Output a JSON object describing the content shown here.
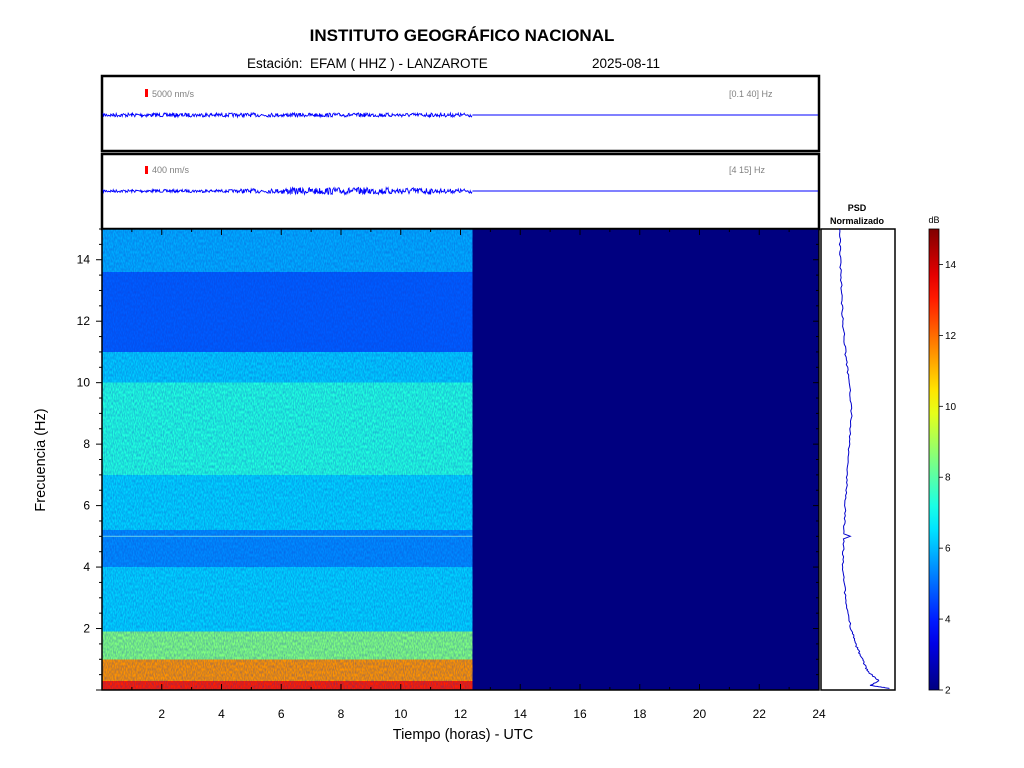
{
  "header": {
    "title": "INSTITUTO GEOGRÁFICO NACIONAL",
    "station_label": "Estación:",
    "station": "EFAM ( HHZ ) - LANZAROTE",
    "date": "2025-08-11"
  },
  "chart_data": [
    {
      "type": "line",
      "panel": "seismogram-broadband",
      "scale_label": "5000 nm/s",
      "filter_label": "[0.1 40] Hz",
      "x_range_hours": [
        0,
        24
      ],
      "data_end_hour": 12.4,
      "trace_color": "#0000ff"
    },
    {
      "type": "line",
      "panel": "seismogram-filtered",
      "scale_label": "400 nm/s",
      "filter_label": "[4 15] Hz",
      "x_range_hours": [
        0,
        24
      ],
      "data_end_hour": 12.4,
      "trace_color": "#0000ff"
    },
    {
      "type": "heatmap",
      "panel": "spectrogram",
      "xlabel": "Tiempo (horas) - UTC",
      "ylabel": "Frecuencia  (Hz)",
      "xlim": [
        0,
        24
      ],
      "ylim": [
        0,
        15
      ],
      "x_ticks": [
        2,
        4,
        6,
        8,
        10,
        12,
        14,
        16,
        18,
        20,
        22,
        24
      ],
      "y_ticks": [
        2,
        4,
        6,
        8,
        10,
        12,
        14
      ],
      "data_end_hour": 12.4,
      "colormap": "jet",
      "no_data_color": "#000080",
      "bands": [
        {
          "freq": [
            0,
            0.3
          ],
          "level": 13
        },
        {
          "freq": [
            0.3,
            1.0
          ],
          "level": 11.5
        },
        {
          "freq": [
            1.0,
            1.9
          ],
          "level": 8.5
        },
        {
          "freq": [
            1.9,
            4.0
          ],
          "level": 6.3
        },
        {
          "freq": [
            4.0,
            5.2
          ],
          "level": 5.4
        },
        {
          "freq": [
            5.2,
            7.0
          ],
          "level": 6.3
        },
        {
          "freq": [
            7.0,
            10.0
          ],
          "level": 7.3
        },
        {
          "freq": [
            10.0,
            11.0
          ],
          "level": 6.2
        },
        {
          "freq": [
            11.0,
            13.6
          ],
          "level": 4.8
        },
        {
          "freq": [
            13.6,
            15.0
          ],
          "level": 5.8
        }
      ],
      "line_at_hz": 5.0
    },
    {
      "type": "line",
      "panel": "psd",
      "title": "PSD\nNormalizado",
      "ylim": [
        0,
        15
      ],
      "trace_color": "#0000cc",
      "points": [
        {
          "f": 0.05,
          "v": 0.95
        },
        {
          "f": 0.15,
          "v": 0.6
        },
        {
          "f": 0.3,
          "v": 0.75
        },
        {
          "f": 0.6,
          "v": 0.55
        },
        {
          "f": 1.0,
          "v": 0.45
        },
        {
          "f": 1.5,
          "v": 0.33
        },
        {
          "f": 2.0,
          "v": 0.25
        },
        {
          "f": 3.0,
          "v": 0.15
        },
        {
          "f": 4.0,
          "v": 0.1
        },
        {
          "f": 5.0,
          "v": 0.12
        },
        {
          "f": 6.0,
          "v": 0.15
        },
        {
          "f": 7.0,
          "v": 0.18
        },
        {
          "f": 8.0,
          "v": 0.22
        },
        {
          "f": 9.0,
          "v": 0.26
        },
        {
          "f": 10.0,
          "v": 0.22
        },
        {
          "f": 11.0,
          "v": 0.15
        },
        {
          "f": 12.0,
          "v": 0.1
        },
        {
          "f": 13.0,
          "v": 0.08
        },
        {
          "f": 14.0,
          "v": 0.06
        },
        {
          "f": 15.0,
          "v": 0.05
        }
      ]
    },
    {
      "type": "heatmap",
      "panel": "colorbar",
      "label": "dB",
      "range": [
        2,
        15
      ],
      "ticks": [
        2,
        4,
        6,
        8,
        10,
        12,
        14
      ]
    }
  ],
  "colors": {
    "scale_marker": "#ff0000",
    "annotation_text": "#808080"
  }
}
